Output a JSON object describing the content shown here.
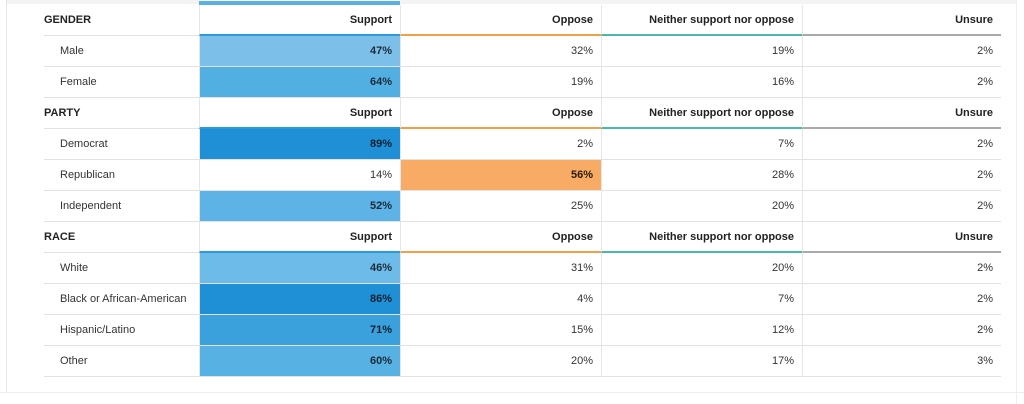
{
  "colors": {
    "support_accent": "#2b9bd8",
    "oppose_accent": "#f1a047",
    "neither_accent": "#4cb8a6",
    "unsure_accent": "#a9a9a9",
    "oppose_highlight": "#f7ab64"
  },
  "table": {
    "columns": [
      "Support",
      "Oppose",
      "Neither support nor oppose",
      "Unsure"
    ],
    "groups": [
      {
        "title": "GENDER",
        "rows": [
          {
            "label": "Male",
            "values": [
              "47%",
              "32%",
              "19%",
              "2%"
            ]
          },
          {
            "label": "Female",
            "values": [
              "64%",
              "19%",
              "16%",
              "2%"
            ]
          }
        ]
      },
      {
        "title": "PARTY",
        "rows": [
          {
            "label": "Democrat",
            "values": [
              "89%",
              "2%",
              "7%",
              "2%"
            ]
          },
          {
            "label": "Republican",
            "values": [
              "14%",
              "56%",
              "28%",
              "2%"
            ]
          },
          {
            "label": "Independent",
            "values": [
              "52%",
              "25%",
              "20%",
              "2%"
            ]
          }
        ]
      },
      {
        "title": "RACE",
        "rows": [
          {
            "label": "White",
            "values": [
              "46%",
              "31%",
              "20%",
              "2%"
            ]
          },
          {
            "label": "Black or African-American",
            "values": [
              "86%",
              "4%",
              "7%",
              "2%"
            ]
          },
          {
            "label": "Hispanic/Latino",
            "values": [
              "71%",
              "15%",
              "12%",
              "2%"
            ]
          },
          {
            "label": "Other",
            "values": [
              "60%",
              "20%",
              "17%",
              "3%"
            ]
          }
        ]
      }
    ]
  }
}
